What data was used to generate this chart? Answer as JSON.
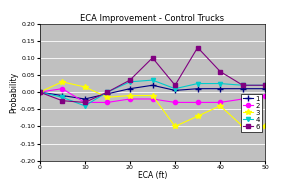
{
  "title": "ECA Improvement - Control Trucks",
  "xlabel": "ECA (ft)",
  "ylabel": "Probability",
  "xlim": [
    0,
    50
  ],
  "ylim": [
    -0.2,
    0.2
  ],
  "yticks": [
    -0.2,
    -0.15,
    -0.1,
    -0.05,
    0.0,
    0.05,
    0.1,
    0.15,
    0.2
  ],
  "xticks": [
    0,
    10,
    20,
    30,
    40,
    50
  ],
  "background_color": "#c0c0c0",
  "fig_background": "#ffffff",
  "series": [
    {
      "label": "1",
      "color": "#000080",
      "marker": "+",
      "markersize": 4,
      "x": [
        0,
        5,
        10,
        15,
        20,
        25,
        30,
        35,
        40,
        45,
        50
      ],
      "y": [
        0.0,
        -0.01,
        -0.02,
        -0.005,
        0.01,
        0.02,
        0.005,
        0.01,
        0.01,
        0.01,
        0.01
      ]
    },
    {
      "label": "2",
      "color": "#ff00ff",
      "marker": "o",
      "markersize": 3,
      "x": [
        0,
        5,
        10,
        15,
        20,
        25,
        30,
        35,
        40,
        45,
        50
      ],
      "y": [
        0.0,
        0.01,
        -0.03,
        -0.03,
        -0.02,
        -0.02,
        -0.03,
        -0.03,
        -0.03,
        -0.02,
        -0.01
      ]
    },
    {
      "label": "3",
      "color": "#ffff00",
      "marker": "*",
      "markersize": 4,
      "x": [
        0,
        5,
        10,
        15,
        20,
        25,
        30,
        35,
        40,
        45,
        50
      ],
      "y": [
        0.0,
        0.03,
        0.015,
        -0.015,
        -0.01,
        -0.01,
        -0.1,
        -0.07,
        -0.04,
        -0.1,
        -0.1
      ]
    },
    {
      "label": "4",
      "color": "#00cccc",
      "marker": "v",
      "markersize": 3,
      "x": [
        0,
        5,
        10,
        15,
        20,
        25,
        30,
        35,
        40,
        45,
        50
      ],
      "y": [
        0.0,
        -0.015,
        -0.04,
        0.0,
        0.03,
        0.035,
        0.01,
        0.025,
        0.025,
        0.02,
        0.02
      ]
    },
    {
      "label": "6",
      "color": "#800080",
      "marker": "s",
      "markersize": 3,
      "x": [
        0,
        5,
        10,
        15,
        20,
        25,
        30,
        35,
        40,
        45,
        50
      ],
      "y": [
        0.0,
        -0.025,
        -0.03,
        0.0,
        0.035,
        0.1,
        0.02,
        0.13,
        0.06,
        0.02,
        0.02
      ]
    }
  ],
  "title_fontsize": 6,
  "axis_label_fontsize": 5.5,
  "tick_fontsize": 4.5,
  "legend_fontsize": 5
}
